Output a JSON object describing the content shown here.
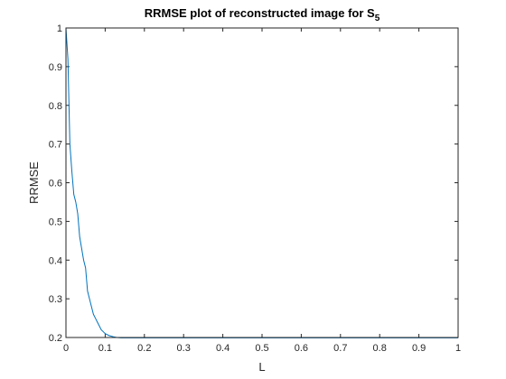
{
  "chart_data": {
    "type": "line",
    "title": "RRMSE plot of reconstructed image for S",
    "title_subscript": "5",
    "xlabel": "L",
    "ylabel": "RRMSE",
    "xlim": [
      0,
      1
    ],
    "ylim": [
      0.2,
      1
    ],
    "x_ticks": [
      0,
      0.1,
      0.2,
      0.3,
      0.4,
      0.5,
      0.6,
      0.7,
      0.8,
      0.9,
      1
    ],
    "x_tick_labels": [
      "0",
      "0.1",
      "0.2",
      "0.3",
      "0.4",
      "0.5",
      "0.6",
      "0.7",
      "0.8",
      "0.9",
      "1"
    ],
    "y_ticks": [
      0.2,
      0.3,
      0.4,
      0.5,
      0.6,
      0.7,
      0.8,
      0.9,
      1
    ],
    "y_tick_labels": [
      "0.2",
      "0.3",
      "0.4",
      "0.5",
      "0.6",
      "0.7",
      "0.8",
      "0.9",
      "1"
    ],
    "grid": false,
    "box": true,
    "series": [
      {
        "color": "#0072bd",
        "x": [
          0,
          0.005,
          0.01,
          0.015,
          0.02,
          0.025,
          0.03,
          0.035,
          0.04,
          0.045,
          0.05,
          0.055,
          0.06,
          0.065,
          0.07,
          0.075,
          0.08,
          0.085,
          0.09,
          0.095,
          0.1,
          0.11,
          0.12,
          0.13,
          0.14,
          0.15,
          0.2,
          0.3,
          0.4,
          0.5,
          0.6,
          0.7,
          0.8,
          0.9,
          1
        ],
        "y": [
          1.0,
          0.92,
          0.7,
          0.63,
          0.57,
          0.55,
          0.52,
          0.46,
          0.43,
          0.4,
          0.38,
          0.32,
          0.3,
          0.28,
          0.26,
          0.25,
          0.24,
          0.23,
          0.22,
          0.215,
          0.21,
          0.205,
          0.202,
          0.2,
          0.199,
          0.199,
          0.199,
          0.199,
          0.199,
          0.199,
          0.199,
          0.199,
          0.199,
          0.199,
          0.199
        ]
      }
    ]
  }
}
